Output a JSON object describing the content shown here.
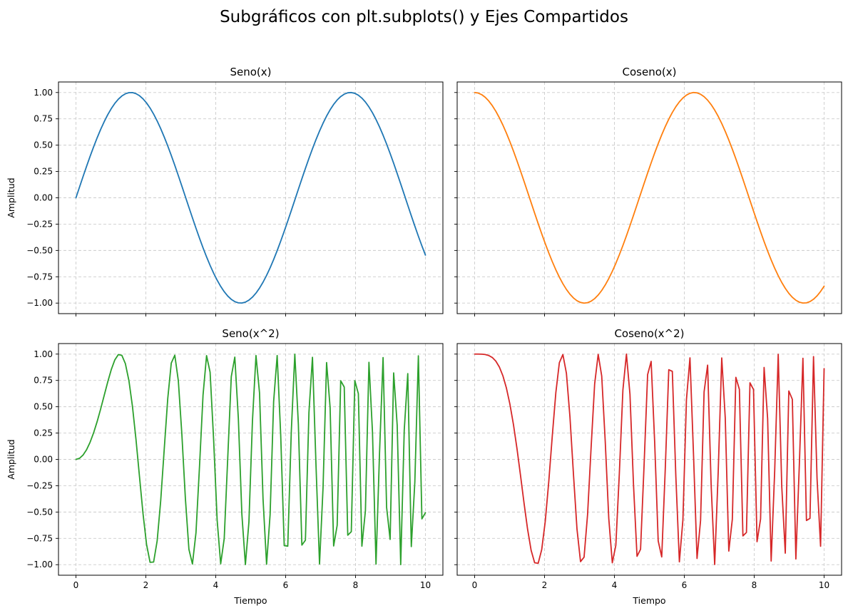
{
  "figure": {
    "title": "Subgráficos con plt.subplots() y Ejes Compartidos"
  },
  "chart_data": [
    {
      "type": "line",
      "title": "Seno(x)",
      "xlabel": "",
      "ylabel": "Amplitud",
      "function": "sin(x)",
      "color": "#1f77b4",
      "x_range": [
        0,
        10
      ],
      "n_points": 100,
      "xlim": [
        -0.5,
        10.5
      ],
      "ylim": [
        -1.1,
        1.1
      ],
      "xticks": [
        0,
        2,
        4,
        6,
        8,
        10
      ],
      "yticks": [
        1.0,
        0.75,
        0.5,
        0.25,
        0.0,
        -0.25,
        -0.5,
        -0.75,
        -1.0
      ],
      "xtick_labels_visible": false,
      "ytick_labels_visible": true,
      "grid": true
    },
    {
      "type": "line",
      "title": "Coseno(x)",
      "xlabel": "",
      "ylabel": "",
      "function": "cos(x)",
      "color": "#ff7f0e",
      "x_range": [
        0,
        10
      ],
      "n_points": 100,
      "xlim": [
        -0.5,
        10.5
      ],
      "ylim": [
        -1.1,
        1.1
      ],
      "xticks": [
        0,
        2,
        4,
        6,
        8,
        10
      ],
      "yticks": [
        1.0,
        0.75,
        0.5,
        0.25,
        0.0,
        -0.25,
        -0.5,
        -0.75,
        -1.0
      ],
      "xtick_labels_visible": false,
      "ytick_labels_visible": false,
      "grid": true
    },
    {
      "type": "line",
      "title": "Seno(x^2)",
      "xlabel": "Tiempo",
      "ylabel": "Amplitud",
      "function": "sin(x^2)",
      "color": "#2ca02c",
      "x_range": [
        0,
        10
      ],
      "n_points": 100,
      "xlim": [
        -0.5,
        10.5
      ],
      "ylim": [
        -1.1,
        1.1
      ],
      "xticks": [
        0,
        2,
        4,
        6,
        8,
        10
      ],
      "yticks": [
        1.0,
        0.75,
        0.5,
        0.25,
        0.0,
        -0.25,
        -0.5,
        -0.75,
        -1.0
      ],
      "xtick_labels_visible": true,
      "ytick_labels_visible": true,
      "grid": true
    },
    {
      "type": "line",
      "title": "Coseno(x^2)",
      "xlabel": "Tiempo",
      "ylabel": "",
      "function": "cos(x^2)",
      "color": "#d62728",
      "x_range": [
        0,
        10
      ],
      "n_points": 100,
      "xlim": [
        -0.5,
        10.5
      ],
      "ylim": [
        -1.1,
        1.1
      ],
      "xticks": [
        0,
        2,
        4,
        6,
        8,
        10
      ],
      "yticks": [
        1.0,
        0.75,
        0.5,
        0.25,
        0.0,
        -0.25,
        -0.5,
        -0.75,
        -1.0
      ],
      "xtick_labels_visible": true,
      "ytick_labels_visible": false,
      "grid": true
    }
  ]
}
